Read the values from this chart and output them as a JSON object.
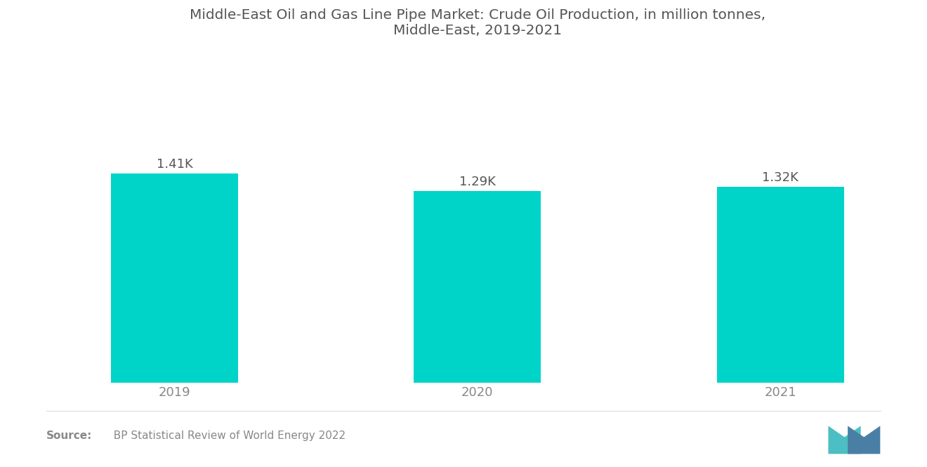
{
  "title": "Middle-East Oil and Gas Line Pipe Market: Crude Oil Production, in million tonnes,\nMiddle-East, 2019-2021",
  "categories": [
    "2019",
    "2020",
    "2021"
  ],
  "values": [
    1410,
    1290,
    1320
  ],
  "bar_labels": [
    "1.41K",
    "1.29K",
    "1.32K"
  ],
  "bar_color": "#00D4C8",
  "background_color": "#ffffff",
  "title_color": "#555555",
  "label_color": "#555555",
  "tick_color": "#888888",
  "source_bold": "Source:",
  "source_text": "  BP Statistical Review of World Energy 2022",
  "title_fontsize": 14.5,
  "label_fontsize": 13,
  "tick_fontsize": 13,
  "source_fontsize": 11,
  "bar_width": 0.42,
  "ylim": [
    0,
    2200
  ],
  "figsize": [
    13.2,
    6.65
  ],
  "dpi": 100
}
